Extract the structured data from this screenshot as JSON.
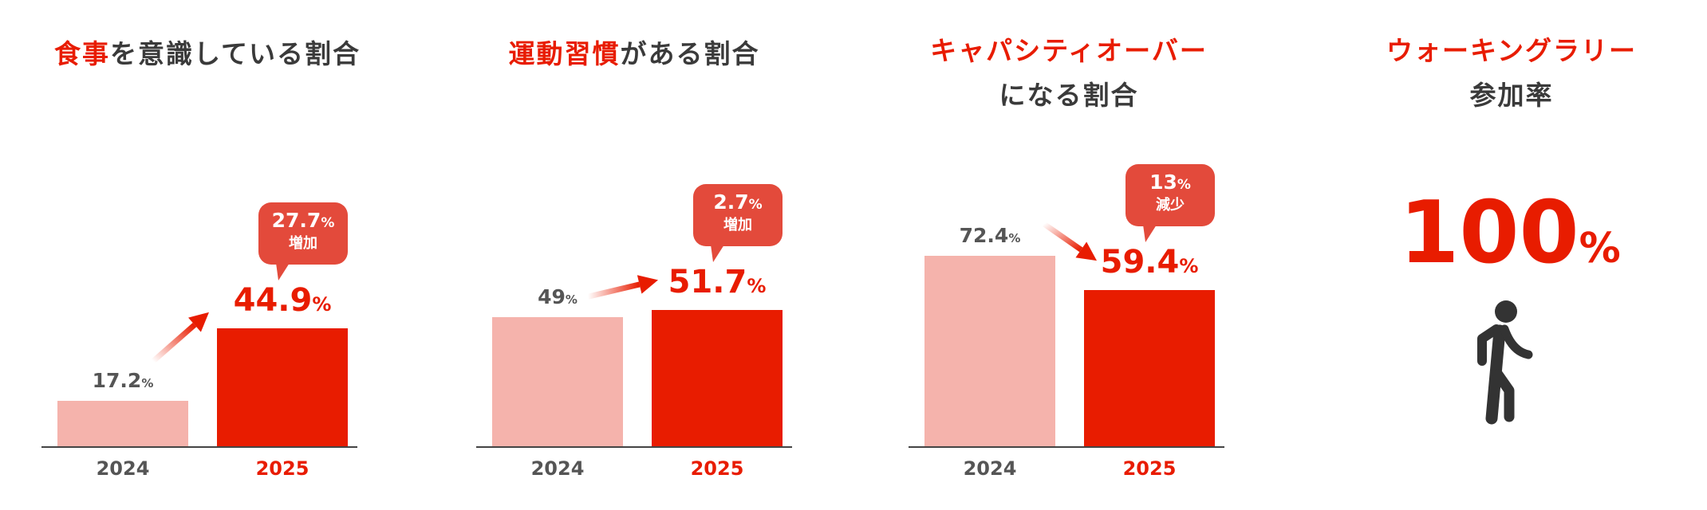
{
  "panels": [
    {
      "title_red": "食事",
      "title_rest": "を意識している割合",
      "title_line2": "",
      "change": {
        "value": "27.7",
        "unit": "%",
        "label": "増加"
      }
    },
    {
      "title_red": "運動習慣",
      "title_rest": "がある割合",
      "title_line2": "",
      "change": {
        "value": "2.7",
        "unit": "%",
        "label": "増加"
      }
    },
    {
      "title_red": "キャパシティオーバー",
      "title_rest": "",
      "title_line2": "になる割合",
      "change": {
        "value": "13",
        "unit": "%",
        "label": "減少"
      }
    },
    {
      "title_red": "ウォーキングラリー",
      "title_rest": "",
      "title_line2": "参加率",
      "big_value": "100",
      "big_unit": "%",
      "icon": "walking-person-icon"
    }
  ],
  "colors": {
    "current": "#e81c00",
    "previous": "#f5b3ac",
    "bubble": "#e34a3b",
    "text": "#3a3a3a"
  },
  "chart_data": [
    {
      "type": "bar",
      "categories": [
        "2024",
        "2025"
      ],
      "values": [
        17.2,
        44.9
      ],
      "labels": [
        "17.2",
        "44.9"
      ],
      "unit": "%",
      "trend": "up"
    },
    {
      "type": "bar",
      "categories": [
        "2024",
        "2025"
      ],
      "values": [
        49,
        51.7
      ],
      "labels": [
        "49",
        "51.7"
      ],
      "unit": "%",
      "trend": "up"
    },
    {
      "type": "bar",
      "categories": [
        "2024",
        "2025"
      ],
      "values": [
        72.4,
        59.4
      ],
      "labels": [
        "72.4",
        "59.4"
      ],
      "unit": "%",
      "trend": "down"
    }
  ]
}
